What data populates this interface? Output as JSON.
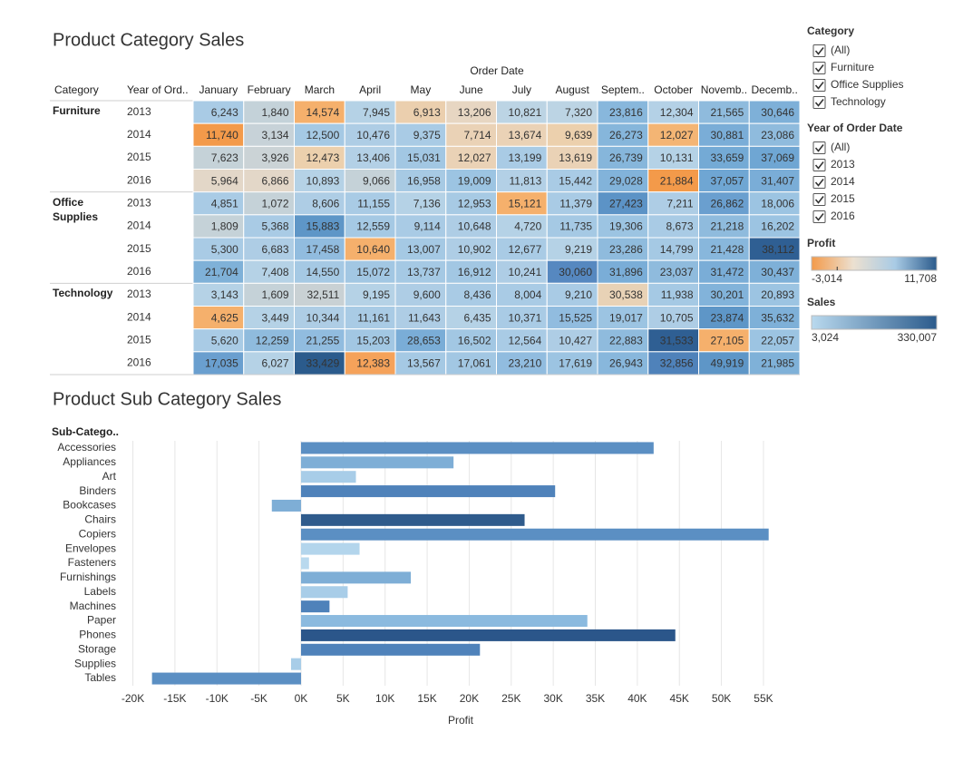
{
  "heatmap": {
    "title": "Product Category Sales",
    "column_group": "Order Date",
    "row_headers": [
      "Category",
      "Year of Ord.."
    ],
    "columns": [
      "January",
      "February",
      "March",
      "April",
      "May",
      "June",
      "July",
      "August",
      "Septem..",
      "October",
      "Novemb..",
      "Decemb.."
    ],
    "groups": [
      {
        "name": "Furniture",
        "rows": [
          {
            "year": "2013",
            "cells": [
              "6,243",
              "1,840",
              "14,574",
              "7,945",
              "6,913",
              "13,206",
              "10,821",
              "7,320",
              "23,816",
              "12,304",
              "21,565",
              "30,646"
            ],
            "colors": [
              "#a9cbe5",
              "#c4d2d9",
              "#f5b06c",
              "#b5d2e6",
              "#ebcfae",
              "#e7d6c2",
              "#bcd4e4",
              "#bcd4e4",
              "#88b7dc",
              "#b4d1e6",
              "#8fbbdd",
              "#7eb0d8"
            ]
          },
          {
            "year": "2014",
            "cells": [
              "11,740",
              "3,134",
              "12,500",
              "10,476",
              "9,375",
              "7,714",
              "13,674",
              "9,639",
              "26,273",
              "12,027",
              "30,881",
              "23,086"
            ],
            "colors": [
              "#f39a4a",
              "#c7d2d8",
              "#a5c9e4",
              "#aecde5",
              "#a9cbe5",
              "#ead2b6",
              "#ead2b6",
              "#ecd0ad",
              "#86b6db",
              "#f4b574",
              "#7aadd7",
              "#8fbbdd"
            ]
          },
          {
            "year": "2015",
            "cells": [
              "7,623",
              "3,926",
              "12,473",
              "13,406",
              "15,031",
              "12,027",
              "13,199",
              "13,619",
              "26,739",
              "10,131",
              "33,659",
              "37,069"
            ],
            "colors": [
              "#c5d2d8",
              "#cbd3d6",
              "#ecd0ad",
              "#b3d0e6",
              "#a2c7e3",
              "#ead2b6",
              "#a9cbe5",
              "#ead2b6",
              "#86b6db",
              "#b5d2e6",
              "#74aad5",
              "#6fa6d3"
            ]
          },
          {
            "year": "2016",
            "cells": [
              "5,964",
              "6,866",
              "10,893",
              "9,066",
              "16,958",
              "19,009",
              "11,813",
              "15,442",
              "29,028",
              "21,884",
              "37,057",
              "31,407"
            ],
            "colors": [
              "#e3d7c8",
              "#e3d7c8",
              "#b5d2e6",
              "#c5d2d8",
              "#a7cae4",
              "#9cc4e2",
              "#b3d0e6",
              "#a9cbe5",
              "#82b3da",
              "#f39a4a",
              "#6fa6d3",
              "#7aadd7"
            ]
          }
        ]
      },
      {
        "name": "Office Supplies",
        "rows": [
          {
            "year": "2013",
            "cells": [
              "4,851",
              "1,072",
              "8,606",
              "11,155",
              "7,136",
              "12,953",
              "15,121",
              "11,379",
              "27,423",
              "7,211",
              "26,862",
              "18,006"
            ],
            "colors": [
              "#a9cbe5",
              "#c5d2d8",
              "#aecde5",
              "#a9cbe5",
              "#b5d2e6",
              "#a7cae4",
              "#f5b06c",
              "#a9cbe5",
              "#5c93c6",
              "#aecde5",
              "#6a9fcf",
              "#9cc4e2"
            ]
          },
          {
            "year": "2014",
            "cells": [
              "1,809",
              "5,368",
              "15,883",
              "12,559",
              "9,114",
              "10,648",
              "4,720",
              "11,735",
              "19,306",
              "8,673",
              "21,218",
              "16,202"
            ],
            "colors": [
              "#c5d2d8",
              "#a9cbe5",
              "#5e96c7",
              "#a5c9e4",
              "#a9cbe5",
              "#aecde5",
              "#b5d2e6",
              "#a5c9e4",
              "#9cc4e2",
              "#a9cbe5",
              "#8fbbdd",
              "#9cc4e2"
            ]
          },
          {
            "year": "2015",
            "cells": [
              "5,300",
              "6,683",
              "17,458",
              "10,640",
              "13,007",
              "10,902",
              "12,677",
              "9,219",
              "23,286",
              "14,799",
              "21,428",
              "38,112"
            ],
            "colors": [
              "#a9cbe5",
              "#aecde5",
              "#91bcdf",
              "#f5b06c",
              "#a5c9e4",
              "#aecde5",
              "#a9cbe5",
              "#b5d2e6",
              "#8fbbdd",
              "#a5c9e4",
              "#88b7dc",
              "#2f5f93"
            ]
          },
          {
            "year": "2016",
            "cells": [
              "21,704",
              "7,408",
              "14,550",
              "15,072",
              "13,737",
              "16,912",
              "10,241",
              "30,060",
              "31,896",
              "23,037",
              "31,472",
              "30,437"
            ],
            "colors": [
              "#7fb1d8",
              "#b5d2e6",
              "#a5c9e4",
              "#a2c7e3",
              "#a5c9e4",
              "#a2c7e3",
              "#aecde5",
              "#5688c0",
              "#7aadd7",
              "#8fbbdd",
              "#7aadd7",
              "#7eb0d8"
            ]
          }
        ]
      },
      {
        "name": "Technology",
        "rows": [
          {
            "year": "2013",
            "cells": [
              "3,143",
              "1,609",
              "32,511",
              "9,195",
              "9,600",
              "8,436",
              "8,004",
              "9,210",
              "30,538",
              "11,938",
              "30,201",
              "20,893"
            ],
            "colors": [
              "#b5d2e6",
              "#c5d2d8",
              "#c9d1d4",
              "#b5d2e6",
              "#aecde5",
              "#a9cbe5",
              "#a9cbe5",
              "#a9cbe5",
              "#e8d2b6",
              "#a5c9e4",
              "#82b3da",
              "#9cc4e2"
            ]
          },
          {
            "year": "2014",
            "cells": [
              "4,625",
              "3,449",
              "10,344",
              "11,161",
              "11,643",
              "6,435",
              "10,371",
              "15,525",
              "19,017",
              "10,705",
              "23,874",
              "35,632"
            ],
            "colors": [
              "#f5b06c",
              "#b5d2e6",
              "#aecde5",
              "#a9cbe5",
              "#aecde5",
              "#b5d2e6",
              "#a9cbe5",
              "#91bcdf",
              "#9cc4e2",
              "#aecde5",
              "#5e96c7",
              "#7eb0d8"
            ]
          },
          {
            "year": "2015",
            "cells": [
              "5,620",
              "12,259",
              "21,255",
              "15,203",
              "28,653",
              "16,502",
              "12,564",
              "10,427",
              "22,883",
              "31,533",
              "27,105",
              "22,057"
            ],
            "colors": [
              "#a9cbe5",
              "#8fbbdd",
              "#91bcdf",
              "#a2c7e3",
              "#7aadd7",
              "#a2c7e3",
              "#a9cbe5",
              "#aecde5",
              "#8fbbdd",
              "#2f5f93",
              "#f5b06c",
              "#9cc4e2"
            ]
          },
          {
            "year": "2016",
            "cells": [
              "17,035",
              "6,027",
              "33,429",
              "12,383",
              "13,567",
              "17,061",
              "23,210",
              "17,619",
              "26,943",
              "32,856",
              "49,919",
              "21,985"
            ],
            "colors": [
              "#6a9fcf",
              "#b5d2e6",
              "#2b5b8c",
              "#f5a25a",
              "#a5c9e4",
              "#a2c7e3",
              "#91bcdf",
              "#9cc4e2",
              "#88b7dc",
              "#4f82ba",
              "#5e96c7",
              "#7fb1d8"
            ]
          }
        ]
      }
    ]
  },
  "chart_data": {
    "type": "bar",
    "orientation": "horizontal",
    "title": "Product Sub Category Sales",
    "y_label": "Sub-Catego..",
    "x_label": "Profit",
    "categories": [
      "Accessories",
      "Appliances",
      "Art",
      "Binders",
      "Bookcases",
      "Chairs",
      "Copiers",
      "Envelopes",
      "Fasteners",
      "Furnishings",
      "Labels",
      "Machines",
      "Paper",
      "Phones",
      "Storage",
      "Supplies",
      "Tables"
    ],
    "values": [
      41937,
      18138,
      6528,
      30222,
      -3473,
      26590,
      55618,
      6964,
      950,
      13059,
      5546,
      3385,
      34054,
      44516,
      21279,
      -1189,
      -17725
    ],
    "colors": [
      "#5b8fc3",
      "#7eaed6",
      "#a8cde8",
      "#4f82ba",
      "#7eaed6",
      "#2f5b8c",
      "#5b8fc3",
      "#b3d5ec",
      "#b9d9ee",
      "#7eaed6",
      "#a8cde8",
      "#4f82ba",
      "#8bbadf",
      "#2b568a",
      "#4f82ba",
      "#a8cde8",
      "#5b8fc3"
    ],
    "xlim": [
      -20500,
      57000
    ],
    "xticks": [
      {
        "value": -20000,
        "label": "-20K"
      },
      {
        "value": -15000,
        "label": "-15K"
      },
      {
        "value": -10000,
        "label": "-10K"
      },
      {
        "value": -5000,
        "label": "-5K"
      },
      {
        "value": 0,
        "label": "0K"
      },
      {
        "value": 5000,
        "label": "5K"
      },
      {
        "value": 10000,
        "label": "10K"
      },
      {
        "value": 15000,
        "label": "15K"
      },
      {
        "value": 20000,
        "label": "20K"
      },
      {
        "value": 25000,
        "label": "25K"
      },
      {
        "value": 30000,
        "label": "30K"
      },
      {
        "value": 35000,
        "label": "35K"
      },
      {
        "value": 40000,
        "label": "40K"
      },
      {
        "value": 45000,
        "label": "45K"
      },
      {
        "value": 50000,
        "label": "50K"
      },
      {
        "value": 55000,
        "label": "55K"
      }
    ],
    "grid": true
  },
  "filters": [
    {
      "title": "Category",
      "options": [
        "(All)",
        "Furniture",
        "Office Supplies",
        "Technology"
      ],
      "checked": [
        true,
        true,
        true,
        true
      ]
    },
    {
      "title": "Year of Order Date",
      "options": [
        "(All)",
        "2013",
        "2014",
        "2015",
        "2016"
      ],
      "checked": [
        true,
        true,
        true,
        true,
        true
      ]
    }
  ],
  "legends": [
    {
      "title": "Profit",
      "min": {
        "value": -3014,
        "label": "-3,014"
      },
      "max": {
        "value": 11708,
        "label": "11,708"
      },
      "colors": [
        "#f39a4a",
        "#ece0d0",
        "#a9cbe5",
        "#2b5b8c"
      ]
    },
    {
      "title": "Sales",
      "min": {
        "value": 3024,
        "label": "3,024"
      },
      "max": {
        "value": 330007,
        "label": "330,007"
      },
      "colors": [
        "#b9d9ee",
        "#2b5b8c"
      ]
    }
  ]
}
